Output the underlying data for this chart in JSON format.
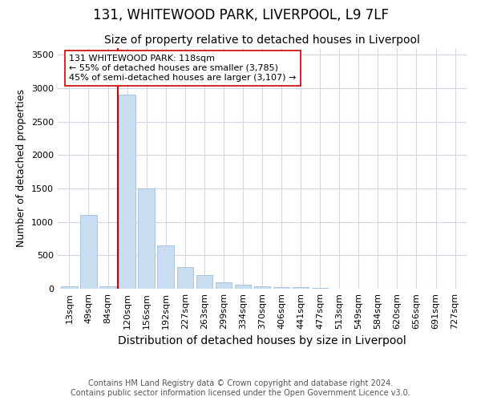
{
  "title1": "131, WHITEWOOD PARK, LIVERPOOL, L9 7LF",
  "title2": "Size of property relative to detached houses in Liverpool",
  "xlabel": "Distribution of detached houses by size in Liverpool",
  "ylabel": "Number of detached properties",
  "categories": [
    "13sqm",
    "49sqm",
    "84sqm",
    "120sqm",
    "156sqm",
    "192sqm",
    "227sqm",
    "263sqm",
    "299sqm",
    "334sqm",
    "370sqm",
    "406sqm",
    "441sqm",
    "477sqm",
    "513sqm",
    "549sqm",
    "584sqm",
    "620sqm",
    "656sqm",
    "691sqm",
    "727sqm"
  ],
  "values": [
    40,
    1100,
    40,
    2900,
    1500,
    650,
    330,
    200,
    100,
    60,
    40,
    30,
    20,
    15,
    5,
    3,
    2,
    2,
    1,
    1,
    1
  ],
  "bar_color": "#c9ddf0",
  "bar_edge_color": "#a0bedd",
  "highlight_index": 3,
  "vline_color": "#cc0000",
  "annotation_text": "131 WHITEWOOD PARK: 118sqm\n← 55% of detached houses are smaller (3,785)\n45% of semi-detached houses are larger (3,107) →",
  "annotation_box_color": "#ffffff",
  "annotation_box_edge": "#cc0000",
  "ylim": [
    0,
    3600
  ],
  "yticks": [
    0,
    500,
    1000,
    1500,
    2000,
    2500,
    3000,
    3500
  ],
  "bg_color": "#ffffff",
  "plot_bg_color": "#ffffff",
  "grid_color": "#d0d8e8",
  "footer": "Contains HM Land Registry data © Crown copyright and database right 2024.\nContains public sector information licensed under the Open Government Licence v3.0.",
  "title1_fontsize": 12,
  "title2_fontsize": 10,
  "xlabel_fontsize": 10,
  "ylabel_fontsize": 9,
  "tick_fontsize": 8,
  "footer_fontsize": 7
}
